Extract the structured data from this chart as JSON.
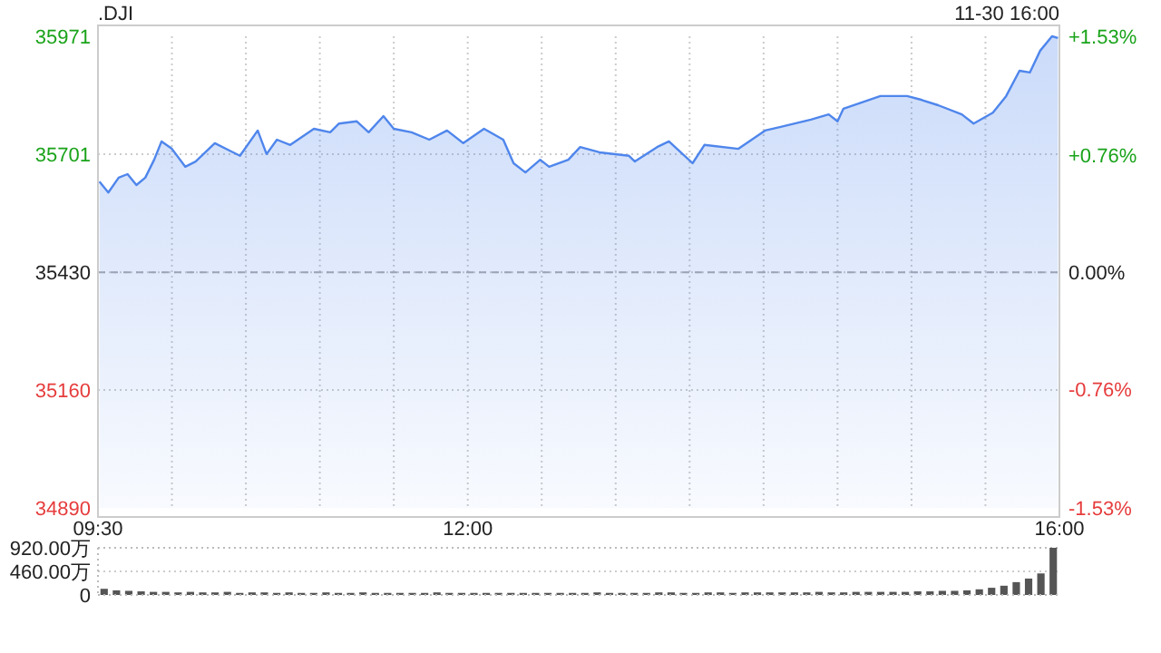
{
  "chart_data": [
    {
      "type": "area",
      "title": ".DJI",
      "annotations": [
        "11-30 16:00"
      ],
      "xlim": [
        9.5,
        16
      ],
      "xticks": [
        {
          "value": 9.5,
          "label": "09:30"
        },
        {
          "value": 10,
          "label": null
        },
        {
          "value": 10.5,
          "label": null
        },
        {
          "value": 11,
          "label": null
        },
        {
          "value": 11.5,
          "label": null
        },
        {
          "value": 12,
          "label": "12:00"
        },
        {
          "value": 12.5,
          "label": null
        },
        {
          "value": 13,
          "label": null
        },
        {
          "value": 13.5,
          "label": null
        },
        {
          "value": 14,
          "label": null
        },
        {
          "value": 14.5,
          "label": null
        },
        {
          "value": 15,
          "label": null
        },
        {
          "value": 15.5,
          "label": null
        },
        {
          "value": 16,
          "label": "16:00"
        }
      ],
      "ylim": [
        34890,
        35971
      ],
      "yticks": [
        34890,
        35160,
        35430,
        35701,
        35971
      ],
      "y2lim": [
        -1.53,
        1.53
      ],
      "y2ticks": [
        {
          "value": -1.53,
          "label": "-1.53%"
        },
        {
          "value": -0.76,
          "label": "-0.76%"
        },
        {
          "value": 0,
          "label": "0.00%"
        },
        {
          "value": 0.76,
          "label": "+0.76%"
        },
        {
          "value": 1.53,
          "label": "+1.53%"
        }
      ],
      "grid": true,
      "line_style": "solid",
      "marker": "none",
      "ref_lines": [
        {
          "axis": "y",
          "value": 35430,
          "label": null,
          "color": "#aaaaaa",
          "line_style": "dashed"
        }
      ],
      "series": [
        {
          "color": "#4f86ec",
          "x": [
            9.51,
            9.57,
            9.64,
            9.7,
            9.76,
            9.82,
            9.88,
            9.93,
            10.0,
            10.09,
            10.16,
            10.29,
            10.46,
            10.58,
            10.64,
            10.71,
            10.8,
            10.96,
            11.07,
            11.13,
            11.25,
            11.33,
            11.43,
            11.5,
            11.62,
            11.74,
            11.86,
            11.97,
            12.11,
            12.24,
            12.31,
            12.39,
            12.49,
            12.55,
            12.68,
            12.76,
            12.89,
            13.09,
            13.13,
            13.28,
            13.36,
            13.52,
            13.6,
            13.83,
            14.01,
            14.11,
            14.32,
            14.44,
            14.5,
            14.54,
            14.79,
            14.97,
            15.06,
            15.18,
            15.34,
            15.42,
            15.55,
            15.64,
            15.73,
            15.8,
            15.87,
            15.95,
            15.99
          ],
          "values": [
            35638,
            35613,
            35647,
            35655,
            35630,
            35647,
            35688,
            35730,
            35713,
            35672,
            35684,
            35726,
            35697,
            35755,
            35701,
            35734,
            35722,
            35759,
            35751,
            35771,
            35776,
            35751,
            35788,
            35759,
            35751,
            35734,
            35755,
            35726,
            35759,
            35734,
            35680,
            35659,
            35688,
            35672,
            35688,
            35717,
            35705,
            35697,
            35684,
            35717,
            35730,
            35680,
            35722,
            35713,
            35755,
            35763,
            35780,
            35792,
            35776,
            35805,
            35834,
            35834,
            35826,
            35813,
            35792,
            35771,
            35796,
            35834,
            35892,
            35888,
            35938,
            35971,
            35967
          ]
        }
      ]
    },
    {
      "type": "bar",
      "tick_labels": "y",
      "grid": "y",
      "ylim": [
        0,
        920
      ],
      "yticks": [
        0,
        {
          "value": 460,
          "label": "460.00万"
        },
        {
          "value": 920,
          "label": "920.00万"
        }
      ],
      "categories": [
        null,
        null,
        null,
        null,
        null,
        null,
        null,
        null,
        null,
        null,
        null,
        null,
        null,
        null,
        null,
        null,
        null,
        null,
        null,
        null,
        null,
        null,
        null,
        null,
        null,
        null,
        null,
        null,
        null,
        null,
        null,
        null,
        null,
        null,
        null,
        null,
        null,
        null,
        null,
        null,
        null,
        null,
        null,
        null,
        null,
        null,
        null,
        null,
        null,
        null,
        null,
        null,
        null,
        null,
        null,
        null,
        null,
        null,
        null,
        null,
        null,
        null,
        null,
        null,
        null,
        null,
        null,
        null,
        null,
        null,
        null,
        null,
        null,
        null,
        null,
        null,
        null,
        null
      ],
      "series": [
        {
          "color": "#555555",
          "values": [
            120,
            90,
            80,
            70,
            60,
            60,
            50,
            60,
            50,
            50,
            60,
            40,
            50,
            50,
            40,
            50,
            40,
            40,
            50,
            40,
            40,
            50,
            40,
            40,
            40,
            40,
            40,
            50,
            40,
            40,
            40,
            40,
            40,
            40,
            40,
            40,
            40,
            40,
            40,
            40,
            50,
            40,
            40,
            40,
            40,
            50,
            50,
            40,
            40,
            50,
            50,
            40,
            50,
            50,
            50,
            50,
            50,
            50,
            60,
            50,
            50,
            60,
            60,
            60,
            60,
            60,
            70,
            70,
            80,
            80,
            90,
            110,
            140,
            180,
            250,
            320,
            420,
            920
          ]
        }
      ]
    }
  ]
}
